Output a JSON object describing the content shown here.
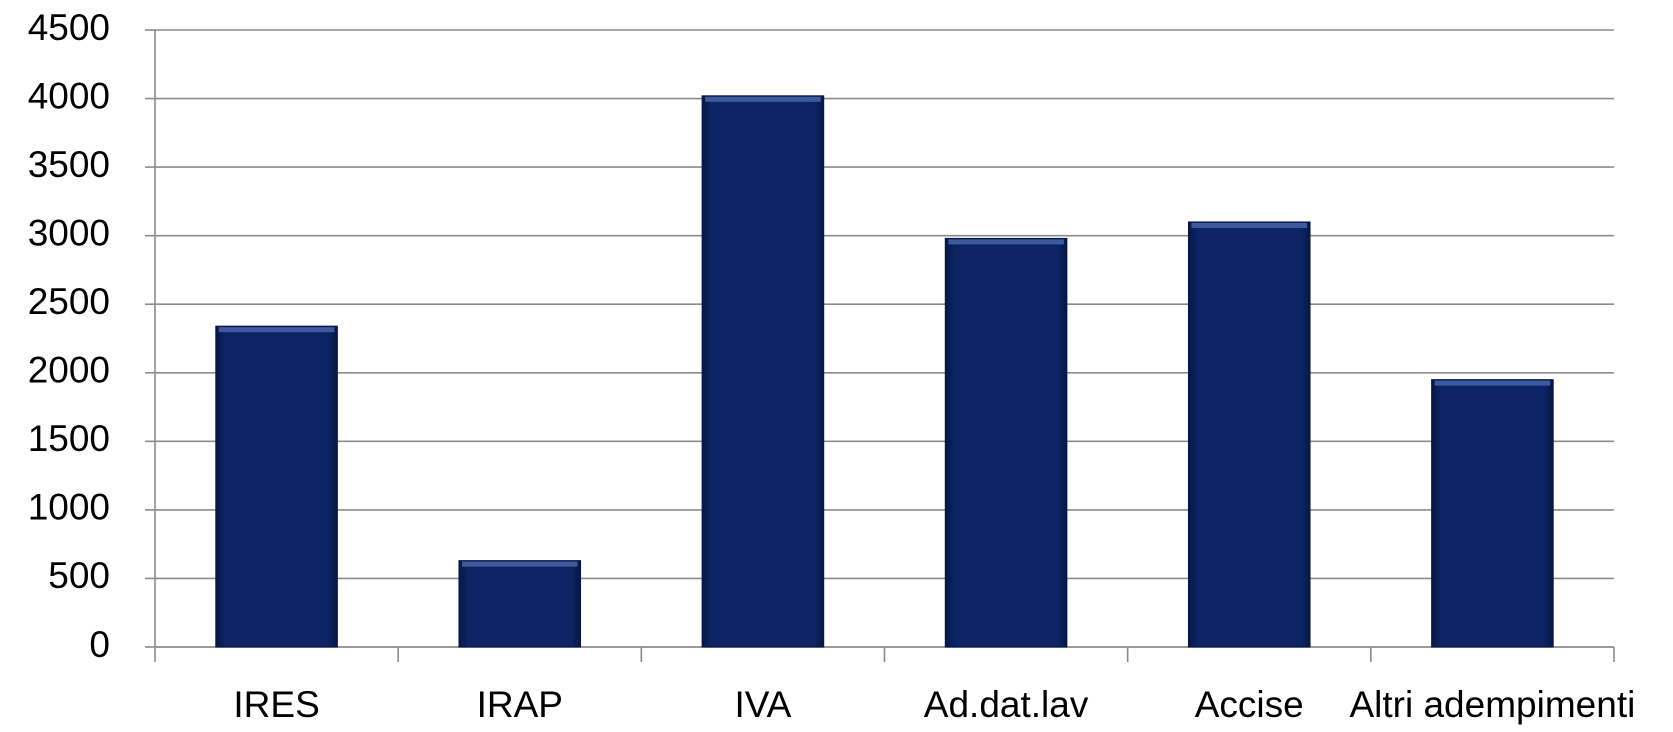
{
  "chart_data": {
    "type": "bar",
    "categories": [
      "IRES",
      "IRAP",
      "IVA",
      "Ad.dat.lav",
      "Accise",
      "Altri adempimenti"
    ],
    "values": [
      2340,
      630,
      4020,
      2980,
      3100,
      1950
    ],
    "color": "#0d2566",
    "ylim": [
      0,
      4500
    ],
    "yticks": [
      0,
      500,
      1000,
      1500,
      2000,
      2500,
      3000,
      3500,
      4000,
      4500
    ],
    "grid": true
  }
}
